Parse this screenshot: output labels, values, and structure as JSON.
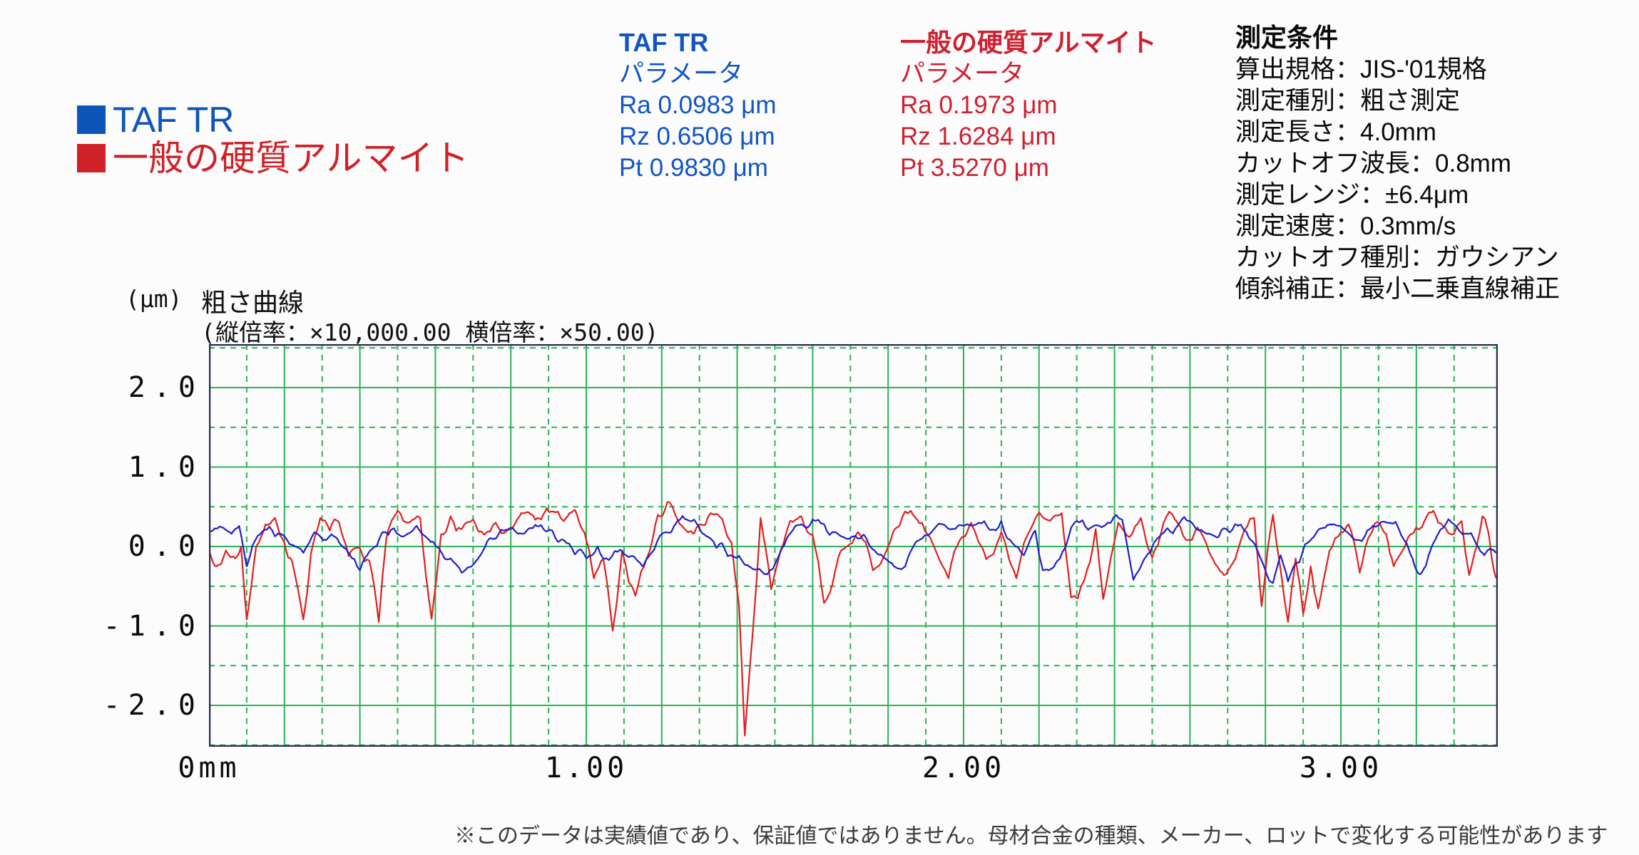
{
  "colors": {
    "background": "#fcfcfc",
    "grid_green": "#2cb357",
    "plot_border": "#2b2b52",
    "taf_blue": "#0d55b8",
    "alumite_red": "#cf2127",
    "curve_blue": "#1f1fc8",
    "curve_red": "#e02020",
    "footnote_text": "#3a3a3a"
  },
  "legend": {
    "items": [
      {
        "label": "TAF TR",
        "color": "#0d55b8"
      },
      {
        "label": "一般の硬質アルマイト",
        "color": "#cf2127"
      }
    ]
  },
  "param_blocks": [
    {
      "title": "TAF TR",
      "subtitle": "パラメータ",
      "color": "#1155c4",
      "rows": [
        "Ra 0.0983 μm",
        "Rz 0.6506 μm",
        "Pt 0.9830 μm"
      ]
    },
    {
      "title": "一般の硬質アルマイト",
      "subtitle": "パラメータ",
      "color": "#ce2030",
      "rows": [
        "Ra 0.1973 μm",
        "Rz 1.6284 μm",
        "Pt 3.5270 μm"
      ]
    }
  ],
  "conditions": {
    "title": "測定条件",
    "lines": [
      "算出規格：JIS-'01規格",
      "測定種別：粗さ測定",
      "測定長さ：4.0mm",
      "カットオフ波長：0.8mm",
      "測定レンジ：±6.4μm",
      "測定速度：0.3mm/s",
      "カットオフ種別：ガウシアン",
      "傾斜補正：最小二乗直線補正"
    ]
  },
  "chart_data": {
    "type": "line",
    "title": "粗さ曲線",
    "subtitle": "(縦倍率：×10,000.00 横倍率：×50.00)",
    "y_axis_unit": "(μm)",
    "xlabel": "mm",
    "ylabel": "μm",
    "xlim": [
      0,
      3.416
    ],
    "ylim": [
      -2.52,
      2.547
    ],
    "x_ticks": [
      {
        "v": 0,
        "label": "0mm"
      },
      {
        "v": 1,
        "label": "1.00"
      },
      {
        "v": 2,
        "label": "2.00"
      },
      {
        "v": 3,
        "label": "3.00"
      }
    ],
    "y_ticks": [
      {
        "v": 2,
        "label": "2.0"
      },
      {
        "v": 1,
        "label": "1.0"
      },
      {
        "v": 0,
        "label": "0.0"
      },
      {
        "v": -1,
        "label": "-1.0"
      },
      {
        "v": -2,
        "label": "-2.0"
      }
    ],
    "grid": {
      "color": "#2cb357",
      "x_solid_step_mm": 0.2,
      "x_dashed_step_mm": 0.1,
      "y_solid_step_um": 1.0,
      "y_dashed_step_um": 0.5
    },
    "legend_position": "top-left",
    "series": [
      {
        "name": "一般の硬質アルマイト",
        "color": "#e02020",
        "roughness": 0.18,
        "seed": 29,
        "points_mm_um": [
          [
            0,
            -0.05
          ],
          [
            0.02,
            -0.25
          ],
          [
            0.045,
            -0.05
          ],
          [
            0.07,
            -0.15
          ],
          [
            0.085,
            0
          ],
          [
            0.1,
            -0.92
          ],
          [
            0.125,
            0
          ],
          [
            0.15,
            0.28
          ],
          [
            0.175,
            0.36
          ],
          [
            0.2,
            0.05
          ],
          [
            0.22,
            -0.18
          ],
          [
            0.25,
            -0.92
          ],
          [
            0.27,
            -0.1
          ],
          [
            0.295,
            0.36
          ],
          [
            0.32,
            0.2
          ],
          [
            0.345,
            0.3
          ],
          [
            0.37,
            -0.12
          ],
          [
            0.4,
            -0.02
          ],
          [
            0.425,
            -0.18
          ],
          [
            0.45,
            -0.95
          ],
          [
            0.47,
            0.1
          ],
          [
            0.5,
            0.45
          ],
          [
            0.53,
            0.3
          ],
          [
            0.56,
            0.36
          ],
          [
            0.59,
            -0.91
          ],
          [
            0.615,
            0.15
          ],
          [
            0.64,
            0.38
          ],
          [
            0.67,
            0.22
          ],
          [
            0.7,
            0.34
          ],
          [
            0.73,
            0.15
          ],
          [
            0.76,
            0.3
          ],
          [
            0.79,
            0.2
          ],
          [
            0.82,
            0.36
          ],
          [
            0.85,
            0.42
          ],
          [
            0.88,
            0.34
          ],
          [
            0.91,
            0.44
          ],
          [
            0.94,
            0.32
          ],
          [
            0.97,
            0.46
          ],
          [
            0.995,
            0.18
          ],
          [
            1.02,
            -0.4
          ],
          [
            1.045,
            -0.15
          ],
          [
            1.07,
            -1.06
          ],
          [
            1.095,
            -0.05
          ],
          [
            1.13,
            -0.62
          ],
          [
            1.16,
            -0.15
          ],
          [
            1.19,
            0.4
          ],
          [
            1.215,
            0.56
          ],
          [
            1.24,
            0.36
          ],
          [
            1.27,
            0.18
          ],
          [
            1.3,
            0.28
          ],
          [
            1.33,
            0.42
          ],
          [
            1.36,
            0.35
          ],
          [
            1.385,
            0.05
          ],
          [
            1.405,
            -0.75
          ],
          [
            1.42,
            -2.38
          ],
          [
            1.44,
            -1.15
          ],
          [
            1.462,
            0.36
          ],
          [
            1.49,
            -0.54
          ],
          [
            1.515,
            -0.05
          ],
          [
            1.54,
            0.32
          ],
          [
            1.57,
            0.38
          ],
          [
            1.6,
            0.15
          ],
          [
            1.63,
            -0.71
          ],
          [
            1.66,
            -0.3
          ],
          [
            1.69,
            0
          ],
          [
            1.72,
            0.18
          ],
          [
            1.76,
            -0.3
          ],
          [
            1.8,
            0
          ],
          [
            1.83,
            0.26
          ],
          [
            1.86,
            0.45
          ],
          [
            1.89,
            0.3
          ],
          [
            1.92,
            0.02
          ],
          [
            1.96,
            -0.4
          ],
          [
            1.99,
            0.08
          ],
          [
            2.02,
            0.3
          ],
          [
            2.06,
            -0.16
          ],
          [
            2.1,
            0.18
          ],
          [
            2.14,
            -0.4
          ],
          [
            2.18,
            0.24
          ],
          [
            2.22,
            0.34
          ],
          [
            2.26,
            0.42
          ],
          [
            2.285,
            -0.64
          ],
          [
            2.32,
            -0.42
          ],
          [
            2.35,
            0.22
          ],
          [
            2.37,
            -0.66
          ],
          [
            2.41,
            0.3
          ],
          [
            2.44,
            0.12
          ],
          [
            2.47,
            0.36
          ],
          [
            2.5,
            -0.14
          ],
          [
            2.53,
            0.3
          ],
          [
            2.56,
            0.34
          ],
          [
            2.59,
            0.08
          ],
          [
            2.62,
            0.24
          ],
          [
            2.65,
            -0.06
          ],
          [
            2.69,
            -0.36
          ],
          [
            2.72,
            -0.16
          ],
          [
            2.75,
            0.24
          ],
          [
            2.77,
            0.36
          ],
          [
            2.79,
            -0.75
          ],
          [
            2.82,
            0.4
          ],
          [
            2.86,
            -0.95
          ],
          [
            2.88,
            -0.15
          ],
          [
            2.9,
            -0.85
          ],
          [
            2.92,
            -0.25
          ],
          [
            2.94,
            -0.78
          ],
          [
            2.97,
            -0.05
          ],
          [
            3,
            0.18
          ],
          [
            3.02,
            0.28
          ],
          [
            3.05,
            -0.33
          ],
          [
            3.08,
            0.16
          ],
          [
            3.1,
            0.3
          ],
          [
            3.12,
            0.16
          ],
          [
            3.14,
            -0.25
          ],
          [
            3.17,
            0
          ],
          [
            3.2,
            0.24
          ],
          [
            3.23,
            0.4
          ],
          [
            3.245,
            0.45
          ],
          [
            3.27,
            0.26
          ],
          [
            3.3,
            0.16
          ],
          [
            3.32,
            0.32
          ],
          [
            3.34,
            -0.36
          ],
          [
            3.36,
            0
          ],
          [
            3.375,
            0.38
          ],
          [
            3.39,
            0.2
          ],
          [
            3.4,
            -0.15
          ],
          [
            3.412,
            -0.4
          ]
        ]
      },
      {
        "name": "TAF TR",
        "color": "#1f1fc8",
        "roughness": 0.14,
        "seed": 11,
        "points_mm_um": [
          [
            0,
            0.2
          ],
          [
            0.03,
            0.25
          ],
          [
            0.06,
            0.16
          ],
          [
            0.08,
            0.26
          ],
          [
            0.1,
            -0.25
          ],
          [
            0.13,
            0.14
          ],
          [
            0.16,
            0.25
          ],
          [
            0.19,
            0.16
          ],
          [
            0.22,
            0.02
          ],
          [
            0.25,
            -0.08
          ],
          [
            0.28,
            0.18
          ],
          [
            0.31,
            0.08
          ],
          [
            0.34,
            0.1
          ],
          [
            0.37,
            -0.08
          ],
          [
            0.4,
            -0.3
          ],
          [
            0.43,
            -0.04
          ],
          [
            0.46,
            0.18
          ],
          [
            0.49,
            0.23
          ],
          [
            0.52,
            0.14
          ],
          [
            0.55,
            0.26
          ],
          [
            0.58,
            0.1
          ],
          [
            0.61,
            -0.02
          ],
          [
            0.64,
            -0.15
          ],
          [
            0.67,
            -0.33
          ],
          [
            0.7,
            -0.23
          ],
          [
            0.73,
            -0.02
          ],
          [
            0.76,
            0.1
          ],
          [
            0.79,
            0.21
          ],
          [
            0.82,
            0.16
          ],
          [
            0.85,
            0.23
          ],
          [
            0.88,
            0.27
          ],
          [
            0.91,
            0.2
          ],
          [
            0.94,
            0.08
          ],
          [
            0.97,
            -0.1
          ],
          [
            1,
            -0.15
          ],
          [
            1.03,
            0
          ],
          [
            1.06,
            -0.17
          ],
          [
            1.09,
            -0.04
          ],
          [
            1.12,
            -0.12
          ],
          [
            1.15,
            -0.25
          ],
          [
            1.18,
            -0.04
          ],
          [
            1.21,
            0.18
          ],
          [
            1.24,
            0.31
          ],
          [
            1.27,
            0.33
          ],
          [
            1.3,
            0.23
          ],
          [
            1.33,
            0.1
          ],
          [
            1.36,
            0.04
          ],
          [
            1.39,
            -0.13
          ],
          [
            1.42,
            -0.23
          ],
          [
            1.45,
            -0.29
          ],
          [
            1.48,
            -0.35
          ],
          [
            1.51,
            -0.12
          ],
          [
            1.54,
            0.16
          ],
          [
            1.57,
            0.28
          ],
          [
            1.6,
            0.34
          ],
          [
            1.63,
            0.28
          ],
          [
            1.66,
            0.18
          ],
          [
            1.69,
            0.1
          ],
          [
            1.72,
            0.1
          ],
          [
            1.75,
            0.02
          ],
          [
            1.78,
            -0.1
          ],
          [
            1.81,
            -0.21
          ],
          [
            1.83,
            -0.28
          ],
          [
            1.86,
            -0.06
          ],
          [
            1.89,
            0.1
          ],
          [
            1.92,
            0.21
          ],
          [
            1.95,
            0.27
          ],
          [
            1.98,
            0.23
          ],
          [
            2.01,
            0.28
          ],
          [
            2.04,
            0.3
          ],
          [
            2.07,
            0.21
          ],
          [
            2.1,
            0.32
          ],
          [
            2.13,
            0.04
          ],
          [
            2.16,
            -0.11
          ],
          [
            2.19,
            0.2
          ],
          [
            2.21,
            -0.3
          ],
          [
            2.24,
            -0.25
          ],
          [
            2.27,
            -0.01
          ],
          [
            2.3,
            0.32
          ],
          [
            2.33,
            0.21
          ],
          [
            2.36,
            0.26
          ],
          [
            2.39,
            0.3
          ],
          [
            2.42,
            0.34
          ],
          [
            2.45,
            -0.42
          ],
          [
            2.48,
            -0.15
          ],
          [
            2.51,
            0.08
          ],
          [
            2.54,
            0.23
          ],
          [
            2.57,
            0.28
          ],
          [
            2.6,
            0.32
          ],
          [
            2.63,
            0.21
          ],
          [
            2.66,
            0.14
          ],
          [
            2.69,
            0.23
          ],
          [
            2.72,
            0.28
          ],
          [
            2.75,
            0.18
          ],
          [
            2.78,
            -0.06
          ],
          [
            2.8,
            -0.3
          ],
          [
            2.82,
            -0.46
          ],
          [
            2.84,
            -0.11
          ],
          [
            2.86,
            -0.44
          ],
          [
            2.89,
            -0.2
          ],
          [
            2.92,
            0.08
          ],
          [
            2.95,
            0.23
          ],
          [
            2.98,
            0.28
          ],
          [
            3.01,
            0.21
          ],
          [
            3.04,
            0.08
          ],
          [
            3.07,
            0.2
          ],
          [
            3.1,
            0.27
          ],
          [
            3.13,
            0.3
          ],
          [
            3.16,
            0.14
          ],
          [
            3.19,
            -0.15
          ],
          [
            3.21,
            -0.35
          ],
          [
            3.24,
            -0.01
          ],
          [
            3.27,
            0.23
          ],
          [
            3.3,
            0.28
          ],
          [
            3.33,
            0.16
          ],
          [
            3.36,
            0.02
          ],
          [
            3.38,
            -0.11
          ],
          [
            3.4,
            -0.04
          ],
          [
            3.412,
            -0.08
          ]
        ]
      }
    ]
  },
  "footnote": "※このデータは実績値であり、保証値ではありません。母材合金の種類、メーカー、ロットで変化する可能性があります"
}
